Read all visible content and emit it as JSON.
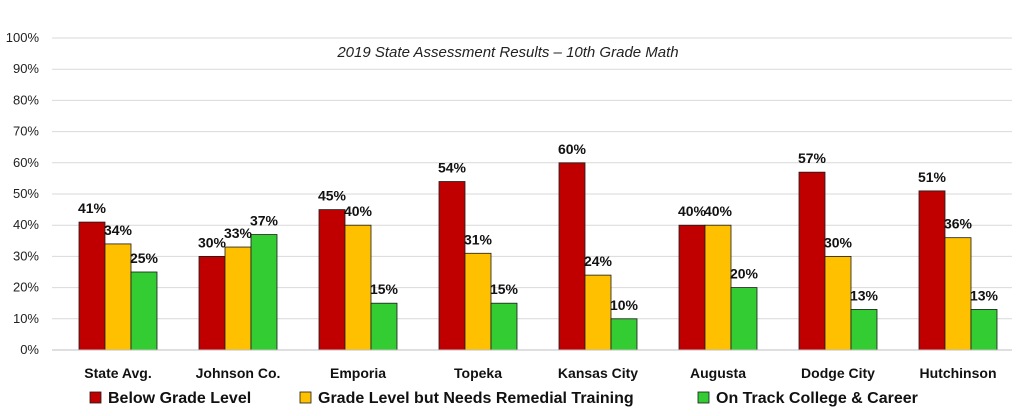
{
  "chart_data": {
    "type": "bar",
    "title": "2019 State Assessment Results – 10th Grade Math",
    "categories": [
      "State Avg.",
      "Johnson Co.",
      "Emporia",
      "Topeka",
      "Kansas City",
      "Augusta",
      "Dodge City",
      "Hutchinson"
    ],
    "series": [
      {
        "name": "Below Grade Level",
        "color": "#c00000",
        "values": [
          41,
          30,
          45,
          54,
          60,
          40,
          57,
          51
        ]
      },
      {
        "name": "Grade Level but Needs Remedial Training",
        "color": "#ffc000",
        "values": [
          34,
          33,
          40,
          31,
          24,
          40,
          30,
          36
        ]
      },
      {
        "name": "On Track College & Career",
        "color": "#33cc33",
        "values": [
          25,
          37,
          15,
          15,
          10,
          20,
          13,
          13
        ]
      }
    ],
    "y_ticks": [
      "0%",
      "10%",
      "20%",
      "30%",
      "40%",
      "50%",
      "60%",
      "70%",
      "80%",
      "90%",
      "100%"
    ],
    "ylim": [
      0,
      100
    ],
    "value_suffix": "%",
    "grid": true,
    "legend_position": "bottom"
  }
}
